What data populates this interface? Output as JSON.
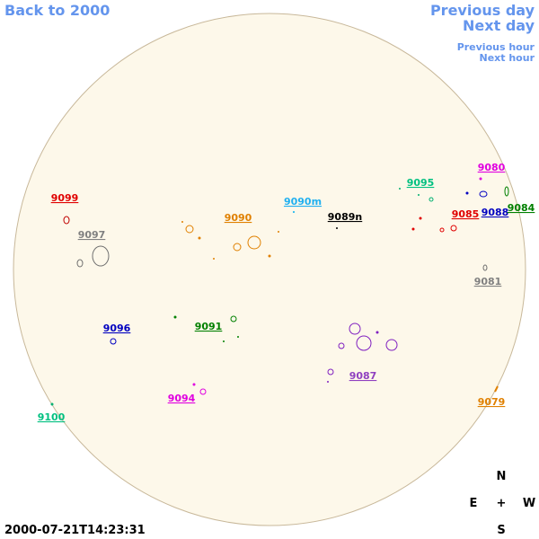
{
  "nav": {
    "back": "Back to 2000",
    "previous_day": "Previous day",
    "next_day": "Next day",
    "previous_hour": "Previous hour",
    "next_hour": "Next hour"
  },
  "regions": [
    "9099",
    "9097",
    "9090",
    "9090m",
    "9089n",
    "9095",
    "9080",
    "9085",
    "9088",
    "9084",
    "9081",
    "9096",
    "9091",
    "9087",
    "9094",
    "9100",
    "9079"
  ],
  "timestamp": "2000-07-21T14:23:31",
  "compass": {
    "north": "N",
    "east": "E",
    "center": "+",
    "west": "W",
    "south": "S"
  }
}
